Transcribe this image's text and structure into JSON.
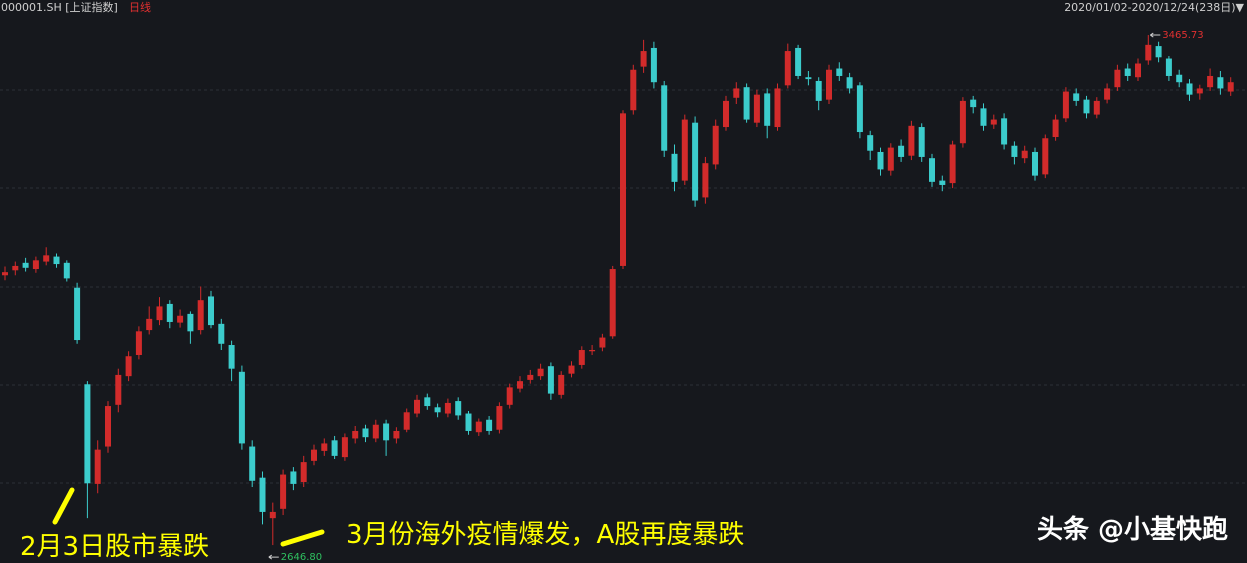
{
  "chart_data": {
    "type": "candlestick",
    "symbol": "000001.SH [上证指数]",
    "period": "日线",
    "range": "2020/01/02-2020/12/24(238日)▼",
    "ylim": [
      2618,
      3522
    ],
    "up_color": "#d22b2b",
    "down_color": "#3ccccc",
    "high_label": "3465.73",
    "low_label": "2646.80",
    "annotations": [
      "2月3日股市暴跌",
      "3月份海外疫情爆发，A股再度暴跌"
    ],
    "watermark": "头条 @小基快跑",
    "open": [
      3080,
      3088,
      3100,
      3090,
      3102,
      3110,
      3100,
      3060,
      2905,
      2745,
      2805,
      2872,
      2918,
      2952,
      2992,
      3008,
      3034,
      3004,
      3018,
      2992,
      3046,
      3002,
      2968,
      2925,
      2805,
      2755,
      2690,
      2705,
      2765,
      2748,
      2782,
      2798,
      2815,
      2788,
      2818,
      2834,
      2818,
      2842,
      2818,
      2832,
      2858,
      2884,
      2868,
      2858,
      2878,
      2858,
      2828,
      2848,
      2832,
      2872,
      2898,
      2912,
      2918,
      2934,
      2888,
      2922,
      2936,
      2958,
      2964,
      2982,
      3095,
      3345,
      3415,
      3445,
      3385,
      3275,
      3232,
      3325,
      3205,
      3258,
      3318,
      3365,
      3382,
      3325,
      3372,
      3318,
      3385,
      3445,
      3398,
      3392,
      3362,
      3412,
      3398,
      3385,
      3305,
      3278,
      3248,
      3288,
      3272,
      3318,
      3268,
      3232,
      3228,
      3292,
      3362,
      3348,
      3322,
      3332,
      3288,
      3268,
      3278,
      3242,
      3302,
      3332,
      3372,
      3362,
      3338,
      3362,
      3382,
      3412,
      3398,
      3425,
      3448,
      3428,
      3402,
      3388,
      3372,
      3382,
      3398,
      3375
    ],
    "high": [
      3094,
      3102,
      3108,
      3110,
      3125,
      3115,
      3104,
      3068,
      2910,
      2815,
      2878,
      2930,
      2958,
      2998,
      3030,
      3045,
      3040,
      3025,
      3022,
      3062,
      3055,
      3010,
      2975,
      2935,
      2815,
      2765,
      2715,
      2768,
      2772,
      2790,
      2808,
      2818,
      2822,
      2826,
      2838,
      2840,
      2848,
      2848,
      2836,
      2866,
      2888,
      2890,
      2874,
      2882,
      2884,
      2862,
      2850,
      2854,
      2876,
      2906,
      2918,
      2928,
      2938,
      2940,
      2926,
      2942,
      2966,
      2968,
      2986,
      3095,
      3345,
      3418,
      3458,
      3455,
      3392,
      3290,
      3338,
      3335,
      3270,
      3330,
      3368,
      3390,
      3388,
      3378,
      3380,
      3388,
      3452,
      3450,
      3408,
      3398,
      3418,
      3422,
      3405,
      3390,
      3312,
      3285,
      3292,
      3298,
      3328,
      3324,
      3275,
      3240,
      3296,
      3366,
      3368,
      3356,
      3338,
      3340,
      3295,
      3288,
      3285,
      3306,
      3338,
      3382,
      3380,
      3368,
      3366,
      3388,
      3418,
      3420,
      3428,
      3465.73,
      3455,
      3432,
      3410,
      3395,
      3386,
      3412,
      3408,
      3398
    ],
    "low": [
      3072,
      3080,
      3086,
      3084,
      3096,
      3092,
      3070,
      2970,
      2690,
      2730,
      2795,
      2860,
      2910,
      2945,
      2985,
      3000,
      2995,
      2996,
      2970,
      2985,
      2995,
      2960,
      2910,
      2800,
      2740,
      2680,
      2646.8,
      2695,
      2735,
      2740,
      2775,
      2790,
      2785,
      2782,
      2810,
      2812,
      2812,
      2790,
      2810,
      2828,
      2852,
      2864,
      2852,
      2852,
      2848,
      2824,
      2822,
      2824,
      2826,
      2866,
      2892,
      2906,
      2912,
      2880,
      2882,
      2916,
      2930,
      2952,
      2958,
      2978,
      3090,
      3338,
      3405,
      3380,
      3270,
      3215,
      3225,
      3190,
      3195,
      3250,
      3312,
      3355,
      3325,
      3318,
      3300,
      3312,
      3380,
      3395,
      3385,
      3345,
      3355,
      3392,
      3372,
      3300,
      3265,
      3240,
      3240,
      3262,
      3265,
      3262,
      3222,
      3215,
      3220,
      3285,
      3340,
      3312,
      3315,
      3282,
      3258,
      3260,
      3232,
      3236,
      3296,
      3326,
      3352,
      3332,
      3332,
      3356,
      3376,
      3392,
      3392,
      3418,
      3422,
      3392,
      3382,
      3360,
      3362,
      3376,
      3370,
      3368
    ],
    "close": [
      3085,
      3095,
      3092,
      3104,
      3112,
      3098,
      3075,
      2976,
      2746,
      2800,
      2870,
      2920,
      2950,
      2990,
      3010,
      3030,
      3005,
      3015,
      2990,
      3040,
      3000,
      2970,
      2930,
      2810,
      2750,
      2700,
      2700,
      2760,
      2745,
      2780,
      2800,
      2810,
      2790,
      2820,
      2830,
      2820,
      2840,
      2815,
      2830,
      2860,
      2880,
      2870,
      2860,
      2875,
      2855,
      2830,
      2845,
      2830,
      2870,
      2900,
      2910,
      2920,
      2930,
      2890,
      2920,
      2935,
      2960,
      2960,
      2980,
      3090,
      3340,
      3410,
      3440,
      3390,
      3280,
      3230,
      3330,
      3200,
      3260,
      3320,
      3360,
      3380,
      3330,
      3370,
      3320,
      3380,
      3440,
      3400,
      3395,
      3360,
      3410,
      3400,
      3380,
      3310,
      3280,
      3250,
      3285,
      3270,
      3320,
      3270,
      3230,
      3225,
      3290,
      3360,
      3350,
      3320,
      3330,
      3290,
      3270,
      3280,
      3240,
      3300,
      3330,
      3375,
      3360,
      3340,
      3360,
      3380,
      3410,
      3400,
      3420,
      3450,
      3430,
      3400,
      3390,
      3370,
      3380,
      3400,
      3380,
      3390
    ]
  }
}
